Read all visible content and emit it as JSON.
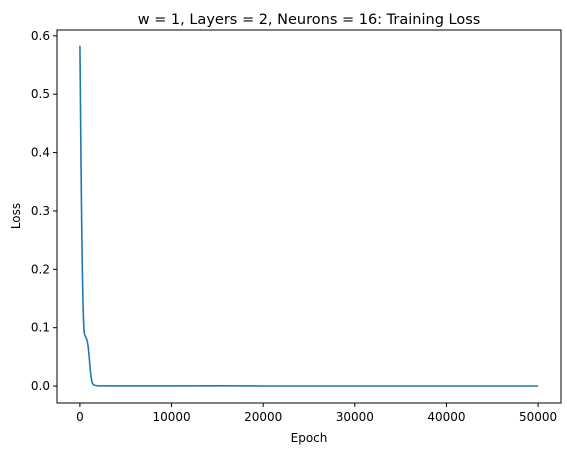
{
  "chart_data": {
    "type": "line",
    "title": "w = 1, Layers = 2, Neurons = 16: Training Loss",
    "xlabel": "Epoch",
    "ylabel": "Loss",
    "xlim": [
      -2500,
      52500
    ],
    "ylim": [
      -0.029,
      0.61
    ],
    "grid": false,
    "x_ticks": [
      0,
      10000,
      20000,
      30000,
      40000,
      50000
    ],
    "x_tick_labels": [
      "0",
      "10000",
      "20000",
      "30000",
      "40000",
      "50000"
    ],
    "y_ticks": [
      0.0,
      0.1,
      0.2,
      0.3,
      0.4,
      0.5,
      0.6
    ],
    "y_tick_labels": [
      "0.0",
      "0.1",
      "0.2",
      "0.3",
      "0.4",
      "0.5",
      "0.6"
    ],
    "series": [
      {
        "color": "#1f77b4",
        "x": [
          0,
          40,
          80,
          120,
          160,
          200,
          250,
          300,
          350,
          400,
          450,
          500,
          550,
          600,
          700,
          800,
          900,
          1000,
          1100,
          1200,
          1300,
          1400,
          1500,
          1700,
          2000,
          3000,
          5000,
          10000,
          15000,
          20000,
          30000,
          40000,
          50000
        ],
        "values": [
          0.583,
          0.52,
          0.45,
          0.385,
          0.325,
          0.27,
          0.215,
          0.17,
          0.135,
          0.11,
          0.095,
          0.089,
          0.087,
          0.085,
          0.082,
          0.077,
          0.068,
          0.052,
          0.033,
          0.017,
          0.008,
          0.004,
          0.002,
          0.001,
          0.0005,
          0.0003,
          0.0002,
          0.0002,
          0.0004,
          0.0001,
          0.0001,
          0.0001,
          0.0001
        ]
      }
    ]
  }
}
